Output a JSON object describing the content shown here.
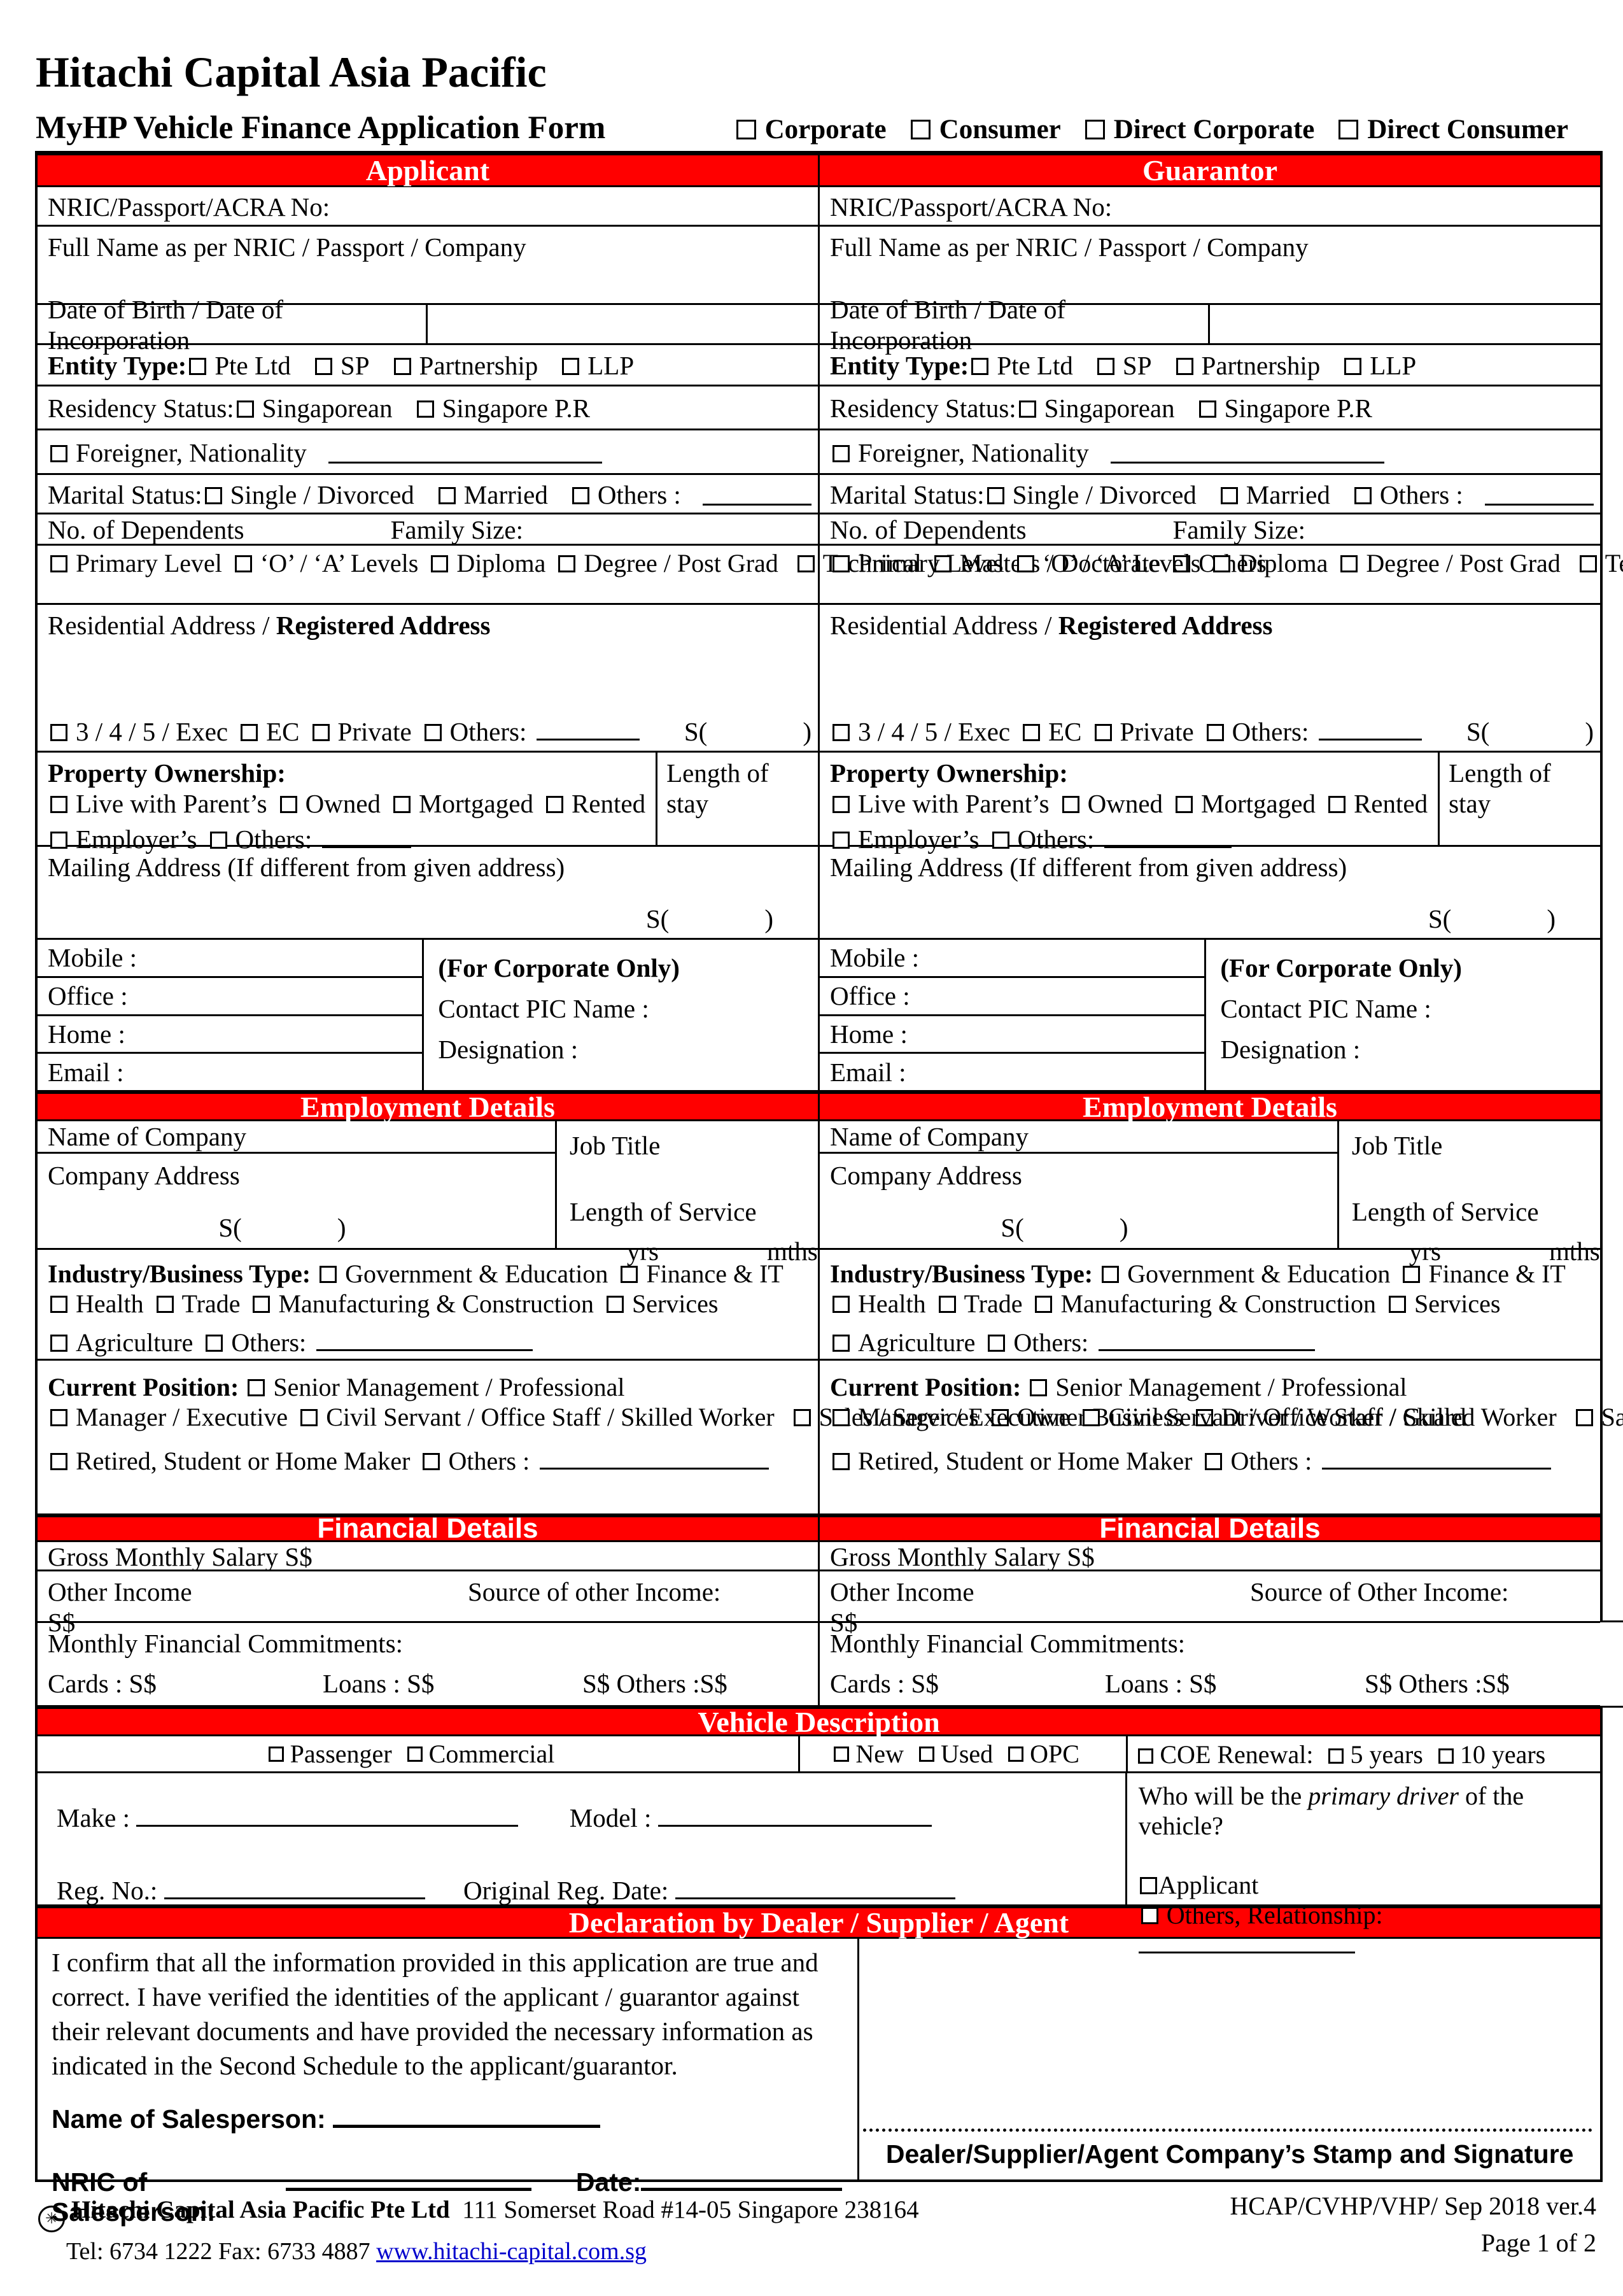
{
  "colors": {
    "accent_red": "#ff0000",
    "link_blue": "#0000cc"
  },
  "header": {
    "company": "Hitachi Capital Asia Pacific",
    "form_title": "MyHP Vehicle Finance Application Form",
    "type_options": [
      "Corporate",
      "Consumer",
      "Direct Corporate",
      "Direct Consumer"
    ]
  },
  "bars": {
    "applicant": "Applicant",
    "guarantor": "Guarantor",
    "employment": "Employment Details",
    "financial": "Financial Details",
    "vehicle": "Vehicle Description",
    "declaration": "Declaration by  Dealer / Supplier / Agent"
  },
  "labels": {
    "nric": "NRIC/Passport/ACRA No:",
    "fullname": "Full Name as per NRIC / Passport / Company",
    "dob": "Date of Birth / Date of Incorporation",
    "entity_type": "Entity Type:",
    "residency_status": "Residency Status:",
    "marital_status": "Marital Status:",
    "dependents": "No. of Dependents",
    "family_size": "Family Size:",
    "res_addr": "Residential Address / ",
    "res_addr_bold": "Registered Address",
    "property": "Property Ownership:",
    "length_stay": "Length of stay",
    "mailing": "Mailing Address (If different from given address)",
    "mobile": "Mobile :",
    "office": "Office :",
    "home": "Home :",
    "email": "Email :",
    "corp_only": "(For Corporate Only)",
    "contact_pic": "Contact PIC Name :",
    "designation": "Designation :",
    "name_company": "Name of Company",
    "company_addr": "Company Address",
    "job_title": "Job Title",
    "length_service": "Length of Service",
    "yrs": "yrs",
    "mths": "mths",
    "industry_type": "Industry/Business Type:",
    "current_position": "Current Position:",
    "gross": "Gross Monthly Salary S$",
    "other_income": "Other Income",
    "ssign": "S$",
    "commitments": "Monthly Financial Commitments:",
    "cards": "Cards : S$",
    "loans": "Loans :  S$",
    "others_ss": "S$ Others :S$",
    "s_open": "S(",
    "s_close": ")"
  },
  "options": {
    "entity": [
      "Pte Ltd",
      "SP",
      "Partnership",
      "LLP"
    ],
    "residency": [
      "Singaporean",
      "Singapore P.R"
    ],
    "foreigner": [
      "Foreigner, Nationality"
    ],
    "marital": [
      "Single / Divorced",
      "Married",
      "Others :"
    ],
    "education1": [
      "Primary Level",
      "‘O’ / ‘A’ Levels",
      "Diploma",
      "Degree / Post Grad"
    ],
    "education2": [
      "Technical",
      "Masters / Doctorate",
      "Others"
    ],
    "housing": [
      "3 / 4 / 5 / Exec",
      "EC",
      "Private",
      "Others:"
    ],
    "ownership1": [
      "Live with Parent’s",
      "Owned",
      "Mortgaged",
      "Rented"
    ],
    "ownership2": [
      "Employer’s",
      "Others:"
    ],
    "industry1": [
      "Government & Education",
      "Finance & IT"
    ],
    "industry2": [
      "Health",
      "Trade",
      "Manufacturing & Construction",
      "Services"
    ],
    "industry3": [
      "Agriculture",
      "Others:"
    ],
    "position1": [
      "Senior Management / Professional"
    ],
    "position2": [
      "Manager / Executive",
      "Civil Servant / Office Staff / Skilled Worker"
    ],
    "position3": [
      "Sales / Services",
      "Owner Business",
      "Driver / Worker / Guard"
    ],
    "position4": [
      "Retired, Student or Home Maker",
      "Others :"
    ],
    "vehicle_class": [
      "Passenger",
      "Commercial"
    ],
    "vehicle_cond": [
      "New",
      "Used",
      "OPC"
    ],
    "coe_label": [
      "COE Renewal:"
    ],
    "coe_years": [
      "5 years",
      "10 years"
    ],
    "driver_applicant": [
      "Applicant"
    ],
    "driver_others": [
      "Others,  Relationship:"
    ]
  },
  "financial": {
    "left_source": "Source of other Income:",
    "right_source": "Source of Other Income:"
  },
  "vehicle": {
    "make": "Make :",
    "model": "Model :",
    "reg_no": "Reg. No.:",
    "orig_reg": "Original Reg. Date:",
    "primary_pre": "Who will be the ",
    "primary_it": "primary driver",
    "primary_post": " of the vehicle?"
  },
  "declaration": {
    "text": "I confirm that all the information provided in this application are true and correct. I have verified the identities of the applicant / guarantor against their relevant documents and have provided the necessary information as indicated in the Second Schedule to the applicant/guarantor.",
    "name_label": "Name  of Salesperson:",
    "nric_label": "NRIC of Salesperson:",
    "date_label": "Date:",
    "stamp_caption": "Dealer/Supplier/Agent Company’s Stamp and Signature"
  },
  "footer": {
    "company": "Hitachi Capital Asia Pacific Pte Ltd",
    "address": "111 Somerset Road #14-05 Singapore 238164",
    "tel": "Tel: 6734 1222 Fax: 6733 4887",
    "website": "www.hitachi-capital.com.sg",
    "doc_ref": "HCAP/CVHP/VHP/ Sep 2018 ver.4",
    "page": "Page 1 of 2"
  }
}
